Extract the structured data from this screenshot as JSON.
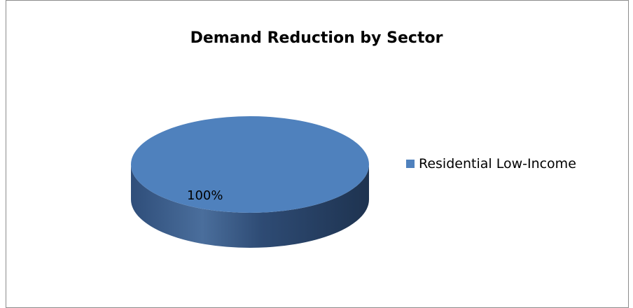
{
  "chart_data": {
    "type": "pie",
    "title": "Demand Reduction by Sector",
    "categories": [
      "Residential Low-Income"
    ],
    "values": [
      100
    ],
    "data_labels": [
      "100%"
    ],
    "legend_position": "right",
    "style": "3d",
    "colors": {
      "top": "#4f81bd",
      "side_dark": "#223a5c",
      "side_mid": "#2f4e7a",
      "side_light": "#4a6e9c"
    }
  }
}
